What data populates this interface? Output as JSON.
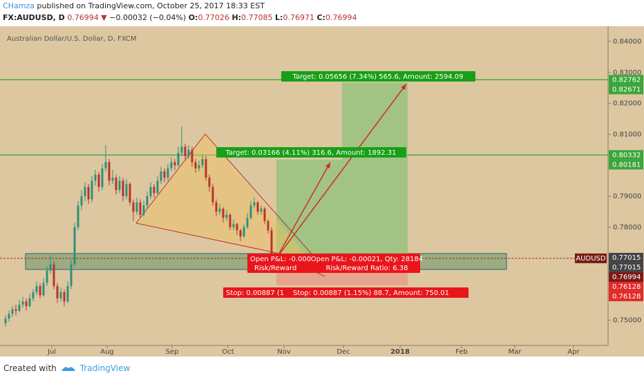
{
  "header": {
    "author": "CHamza",
    "published": " published on TradingView.com, October 25, 2017 18:33 EST",
    "symbol": "FX:AUDUSD, D",
    "last": "0.76994",
    "arrow": "▼",
    "change": "−0.00032 (−0.04%)",
    "o_label": "O:",
    "o": "0.77026",
    "h_label": "H:",
    "h": "0.77085",
    "l_label": "L:",
    "l": "0.76971",
    "c_label": "C:",
    "c": "0.76994"
  },
  "chart_data": {
    "type": "candlestick",
    "title": "Australian Dollar/U.S. Dollar, D, FXCM",
    "up_color": "#2f8f7a",
    "down_color": "#b8332d",
    "ylim": [
      0.7418,
      0.8449
    ],
    "yticks": [
      {
        "value": 0.84,
        "label": "0.84000"
      },
      {
        "value": 0.83,
        "label": "0.83000"
      },
      {
        "value": 0.82,
        "label": "0.82000"
      },
      {
        "value": 0.81,
        "label": "0.81000"
      },
      {
        "value": 0.79,
        "label": "0.79000"
      },
      {
        "value": 0.78,
        "label": "0.78000"
      },
      {
        "value": 0.75,
        "label": "0.75000"
      }
    ],
    "price_badges": [
      0.82762,
      0.82671,
      0.80332,
      0.80181,
      0.77015,
      0.77015,
      0.76994,
      0.76128,
      0.76128
    ],
    "badge_colors": [
      "#3aa63a",
      "#3aa63a",
      "#3aa63a",
      "#3aa63a",
      "#444444",
      "#444444",
      "#7a1a14",
      "#e22b2b",
      "#e22b2b"
    ],
    "symbol_tag": "AUDUSD",
    "xticks": [
      "Jul",
      "Aug",
      "Sep",
      "Oct",
      "Nov",
      "Dec",
      "2018",
      "Feb",
      "Mar",
      "Apr"
    ],
    "candles": [
      [
        0.749,
        0.7515,
        0.748,
        0.7505
      ],
      [
        0.7505,
        0.753,
        0.7495,
        0.752
      ],
      [
        0.752,
        0.7545,
        0.751,
        0.7535
      ],
      [
        0.7535,
        0.755,
        0.7515,
        0.753
      ],
      [
        0.753,
        0.7565,
        0.7525,
        0.755
      ],
      [
        0.755,
        0.7575,
        0.754,
        0.756
      ],
      [
        0.756,
        0.757,
        0.753,
        0.7545
      ],
      [
        0.7545,
        0.7585,
        0.754,
        0.757
      ],
      [
        0.757,
        0.76,
        0.756,
        0.759
      ],
      [
        0.759,
        0.7625,
        0.758,
        0.761
      ],
      [
        0.761,
        0.762,
        0.757,
        0.758
      ],
      [
        0.758,
        0.7635,
        0.7575,
        0.762
      ],
      [
        0.762,
        0.7675,
        0.761,
        0.766
      ],
      [
        0.766,
        0.771,
        0.765,
        0.768
      ],
      [
        0.768,
        0.769,
        0.76,
        0.761
      ],
      [
        0.761,
        0.762,
        0.7555,
        0.757
      ],
      [
        0.757,
        0.7605,
        0.756,
        0.759
      ],
      [
        0.759,
        0.76,
        0.7545,
        0.756
      ],
      [
        0.756,
        0.7625,
        0.7555,
        0.761
      ],
      [
        0.761,
        0.7695,
        0.76,
        0.768
      ],
      [
        0.768,
        0.7815,
        0.7675,
        0.78
      ],
      [
        0.78,
        0.7885,
        0.779,
        0.787
      ],
      [
        0.787,
        0.792,
        0.7855,
        0.79
      ],
      [
        0.79,
        0.7945,
        0.7885,
        0.793
      ],
      [
        0.793,
        0.794,
        0.7875,
        0.789
      ],
      [
        0.789,
        0.7965,
        0.788,
        0.795
      ],
      [
        0.795,
        0.7985,
        0.7935,
        0.797
      ],
      [
        0.797,
        0.798,
        0.7915,
        0.793
      ],
      [
        0.793,
        0.8005,
        0.792,
        0.799
      ],
      [
        0.799,
        0.8065,
        0.798,
        0.801
      ],
      [
        0.801,
        0.802,
        0.7935,
        0.795
      ],
      [
        0.795,
        0.7985,
        0.794,
        0.796
      ],
      [
        0.796,
        0.797,
        0.7905,
        0.792
      ],
      [
        0.792,
        0.7965,
        0.791,
        0.795
      ],
      [
        0.795,
        0.796,
        0.7885,
        0.79
      ],
      [
        0.79,
        0.7955,
        0.789,
        0.794
      ],
      [
        0.794,
        0.7945,
        0.787,
        0.788
      ],
      [
        0.788,
        0.789,
        0.782,
        0.785
      ],
      [
        0.785,
        0.7895,
        0.784,
        0.788
      ],
      [
        0.788,
        0.789,
        0.783,
        0.784
      ],
      [
        0.784,
        0.7885,
        0.7835,
        0.787
      ],
      [
        0.787,
        0.7915,
        0.786,
        0.79
      ],
      [
        0.79,
        0.7945,
        0.789,
        0.793
      ],
      [
        0.793,
        0.794,
        0.7895,
        0.791
      ],
      [
        0.791,
        0.7965,
        0.7905,
        0.795
      ],
      [
        0.795,
        0.7995,
        0.794,
        0.798
      ],
      [
        0.798,
        0.799,
        0.7945,
        0.796
      ],
      [
        0.796,
        0.8005,
        0.795,
        0.799
      ],
      [
        0.799,
        0.8025,
        0.798,
        0.801
      ],
      [
        0.801,
        0.802,
        0.7985,
        0.8
      ],
      [
        0.8,
        0.806,
        0.7995,
        0.804
      ],
      [
        0.804,
        0.8125,
        0.803,
        0.806
      ],
      [
        0.806,
        0.807,
        0.8015,
        0.803
      ],
      [
        0.803,
        0.8065,
        0.802,
        0.805
      ],
      [
        0.805,
        0.806,
        0.7995,
        0.801
      ],
      [
        0.801,
        0.802,
        0.7975,
        0.799
      ],
      [
        0.799,
        0.8015,
        0.798,
        0.8
      ],
      [
        0.8,
        0.8035,
        0.799,
        0.802
      ],
      [
        0.802,
        0.803,
        0.795,
        0.796
      ],
      [
        0.796,
        0.797,
        0.7915,
        0.793
      ],
      [
        0.793,
        0.794,
        0.787,
        0.788
      ],
      [
        0.788,
        0.789,
        0.7835,
        0.785
      ],
      [
        0.785,
        0.7875,
        0.784,
        0.786
      ],
      [
        0.786,
        0.7865,
        0.7815,
        0.783
      ],
      [
        0.783,
        0.7855,
        0.782,
        0.784
      ],
      [
        0.784,
        0.7845,
        0.779,
        0.78
      ],
      [
        0.78,
        0.7825,
        0.779,
        0.781
      ],
      [
        0.781,
        0.7815,
        0.7775,
        0.779
      ],
      [
        0.779,
        0.7795,
        0.7755,
        0.777
      ],
      [
        0.777,
        0.781,
        0.7765,
        0.78
      ],
      [
        0.78,
        0.7845,
        0.7795,
        0.783
      ],
      [
        0.783,
        0.7885,
        0.7825,
        0.787
      ],
      [
        0.787,
        0.7895,
        0.786,
        0.788
      ],
      [
        0.788,
        0.7885,
        0.784,
        0.785
      ],
      [
        0.785,
        0.787,
        0.784,
        0.786
      ],
      [
        0.786,
        0.7865,
        0.781,
        0.782
      ],
      [
        0.782,
        0.7825,
        0.778,
        0.779
      ],
      [
        0.779,
        0.78,
        0.769,
        0.7699
      ]
    ],
    "annotations": {
      "target_long": "Target: 0.05656 (7.34%) 565.6, Amount: 2594.09",
      "target_short": "Target: 0.03166 (4.11%) 316.6, Amount: 1892.31",
      "pnl_1": "Open P&L: -0.000",
      "rr_1": "Risk/Reward",
      "pnl_2": "Open P&L: -0.00021, Qty: 28184",
      "rr_2": "Risk/Reward Ratio: 6.38",
      "stop_1": "Stop: 0.00887 (1",
      "stop_2": "Stop: 0.00887 (1.15%) 88.7, Amount: 750.01"
    }
  },
  "footer": {
    "created": "Created with",
    "brand": "TradingView"
  }
}
